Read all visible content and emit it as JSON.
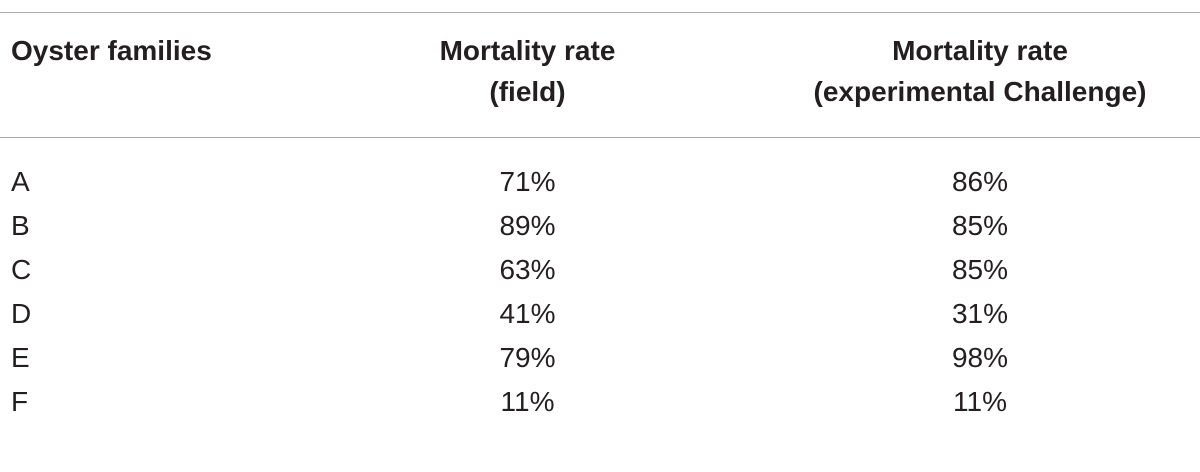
{
  "table": {
    "headers": [
      {
        "line1": "Oyster families",
        "line2": ""
      },
      {
        "line1": "Mortality rate",
        "line2": "(field)"
      },
      {
        "line1": "Mortality rate",
        "line2": "(experimental Challenge)"
      }
    ],
    "rows": [
      [
        "A",
        "71%",
        "86%"
      ],
      [
        "B",
        "89%",
        "85%"
      ],
      [
        "C",
        "63%",
        "85%"
      ],
      [
        "D",
        "41%",
        "31%"
      ],
      [
        "E",
        "79%",
        "98%"
      ],
      [
        "F",
        "11%",
        "11%"
      ]
    ]
  }
}
